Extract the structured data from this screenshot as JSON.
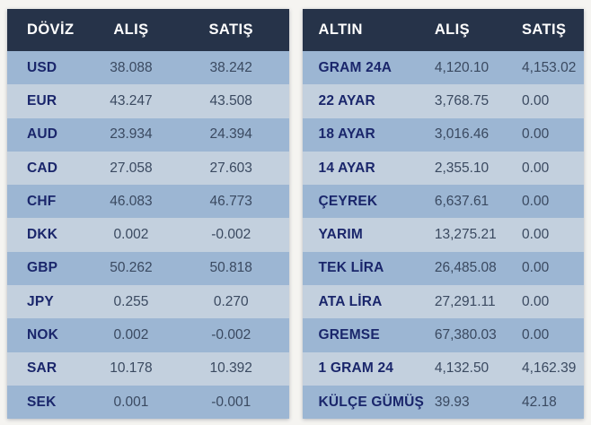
{
  "colors": {
    "header_bg": "#263349",
    "row_dark": "#9cb6d3",
    "row_light": "#c3d0de",
    "label_text": "#1a266b",
    "value_text": "#3a4960",
    "header_text": "#ffffff"
  },
  "currency_table": {
    "headers": [
      "DÖVİZ",
      "ALIŞ",
      "SATIŞ"
    ],
    "rows": [
      {
        "label": "USD",
        "alis": "38.088",
        "satis": "38.242"
      },
      {
        "label": "EUR",
        "alis": "43.247",
        "satis": "43.508"
      },
      {
        "label": "AUD",
        "alis": "23.934",
        "satis": "24.394"
      },
      {
        "label": "CAD",
        "alis": "27.058",
        "satis": "27.603"
      },
      {
        "label": "CHF",
        "alis": "46.083",
        "satis": "46.773"
      },
      {
        "label": "DKK",
        "alis": "0.002",
        "satis": "-0.002"
      },
      {
        "label": "GBP",
        "alis": "50.262",
        "satis": "50.818"
      },
      {
        "label": "JPY",
        "alis": "0.255",
        "satis": "0.270"
      },
      {
        "label": "NOK",
        "alis": "0.002",
        "satis": "-0.002"
      },
      {
        "label": "SAR",
        "alis": "10.178",
        "satis": "10.392"
      },
      {
        "label": "SEK",
        "alis": "0.001",
        "satis": "-0.001"
      }
    ]
  },
  "gold_table": {
    "headers": [
      "ALTIN",
      "ALIŞ",
      "SATIŞ"
    ],
    "rows": [
      {
        "label": "GRAM 24A",
        "alis": "4,120.10",
        "satis": "4,153.02"
      },
      {
        "label": "22 AYAR",
        "alis": "3,768.75",
        "satis": "0.00"
      },
      {
        "label": "18 AYAR",
        "alis": "3,016.46",
        "satis": "0.00"
      },
      {
        "label": "14 AYAR",
        "alis": "2,355.10",
        "satis": "0.00"
      },
      {
        "label": "ÇEYREK",
        "alis": "6,637.61",
        "satis": "0.00"
      },
      {
        "label": "YARIM",
        "alis": "13,275.21",
        "satis": "0.00"
      },
      {
        "label": "TEK LİRA",
        "alis": "26,485.08",
        "satis": "0.00"
      },
      {
        "label": "ATA LİRA",
        "alis": "27,291.11",
        "satis": "0.00"
      },
      {
        "label": "GREMSE",
        "alis": "67,380.03",
        "satis": "0.00"
      },
      {
        "label": "1 GRAM 24",
        "alis": "4,132.50",
        "satis": "4,162.39"
      },
      {
        "label": "KÜLÇE GÜMÜŞ",
        "alis": "39.93",
        "satis": "42.18"
      }
    ]
  }
}
